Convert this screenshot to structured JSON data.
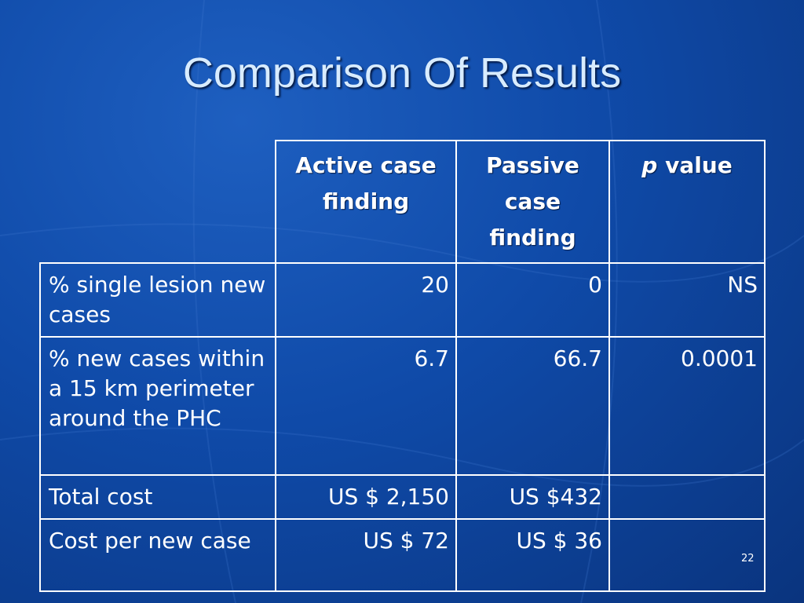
{
  "title": "Comparison Of Results",
  "table": {
    "header": [
      "Active case finding",
      "Passive case finding",
      [
        "p",
        "value"
      ]
    ],
    "rows": [
      [
        "% single lesion new cases",
        "20",
        "0",
        "NS"
      ],
      [
        "% new cases within a 15 km perimeter around the PHC",
        "6.7",
        "66.7",
        "0.0001"
      ],
      [
        "Total cost",
        "US $ 2,150",
        "US $432"
      ],
      [
        "Cost per new case",
        "US $ 72",
        "US $ 36"
      ]
    ]
  },
  "page_number": "22"
}
